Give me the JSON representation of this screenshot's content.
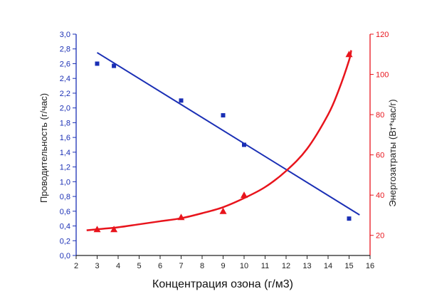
{
  "chart_data": {
    "type": "line",
    "title": "",
    "xlabel": "Концентрация озона (г/м3)",
    "xlim": [
      2,
      16
    ],
    "x_ticks": [
      "2",
      "3",
      "4",
      "5",
      "6",
      "7",
      "8",
      "9",
      "10",
      "11",
      "12",
      "13",
      "14",
      "15",
      "16"
    ],
    "grid": false,
    "left_axis": {
      "label": "Проводительность (г/час)",
      "ylim": [
        0,
        3.0
      ],
      "ticks": [
        "0,0",
        "0,2",
        "0,4",
        "0,6",
        "0,8",
        "1,0",
        "1,2",
        "1,4",
        "1,6",
        "1,8",
        "2,0",
        "2,2",
        "2,4",
        "2,6",
        "2,8",
        "3,0"
      ],
      "color": "#1a2fb5"
    },
    "right_axis": {
      "label": "Энергозатраты (Вт*час/г)",
      "ylim": [
        10,
        120
      ],
      "ticks": [
        "20",
        "40",
        "60",
        "80",
        "100",
        "120"
      ],
      "color": "#e8141c"
    },
    "series": [
      {
        "axis": "left",
        "color": "#1a2fb5",
        "marker": "square",
        "points": {
          "x": [
            3,
            3.8,
            7,
            9,
            10,
            15
          ],
          "y": [
            2.6,
            2.57,
            2.1,
            1.9,
            1.5,
            0.5
          ]
        },
        "fit_line": {
          "x": [
            3,
            15.5
          ],
          "y": [
            2.75,
            0.55
          ]
        }
      },
      {
        "axis": "right",
        "color": "#e8141c",
        "marker": "triangle",
        "points": {
          "x": [
            3,
            3.8,
            7,
            9,
            10,
            15
          ],
          "y": [
            23,
            23,
            29,
            32,
            40,
            110
          ]
        },
        "fit_curve": {
          "x": [
            2.5,
            3,
            4,
            5,
            6,
            7,
            8,
            9,
            10,
            11,
            12,
            13,
            14,
            14.5,
            15,
            15.1
          ],
          "y": [
            22.5,
            23,
            24,
            25.5,
            27,
            28.5,
            31,
            34,
            38.5,
            44,
            52,
            63,
            80,
            92,
            107,
            112
          ]
        }
      }
    ]
  }
}
